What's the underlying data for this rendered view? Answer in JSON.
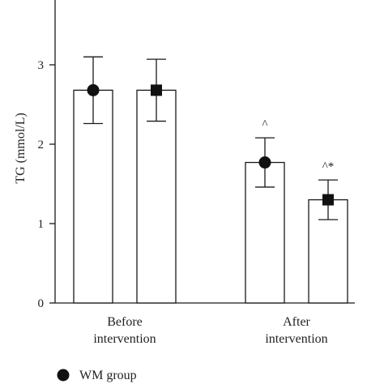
{
  "chart_data": {
    "type": "bar",
    "categories": [
      "Before intervention",
      "After intervention"
    ],
    "category_lines": [
      [
        "Before",
        "intervention"
      ],
      [
        "After",
        "intervention"
      ]
    ],
    "ylabel": "TG (mmol/L)",
    "xlabel": "",
    "ylim": [
      0,
      3.8
    ],
    "yticks": [
      0,
      1,
      2,
      3
    ],
    "series": [
      {
        "name": "WM group",
        "marker": "circle",
        "values": [
          2.68,
          1.77
        ],
        "error": [
          0.42,
          0.31
        ],
        "annotations": [
          "",
          "^"
        ]
      },
      {
        "marker": "square",
        "values": [
          2.68,
          1.3
        ],
        "error": [
          0.39,
          0.25
        ],
        "annotations": [
          "",
          "^*"
        ]
      }
    ],
    "legend": {
      "placement": "bottom-left",
      "entries": [
        {
          "marker": "circle",
          "label": "WM group"
        }
      ]
    },
    "grid": false,
    "colors": {
      "bar_fill": "#ffffff",
      "stroke": "#1a1a1a",
      "marker": "#111111"
    }
  }
}
